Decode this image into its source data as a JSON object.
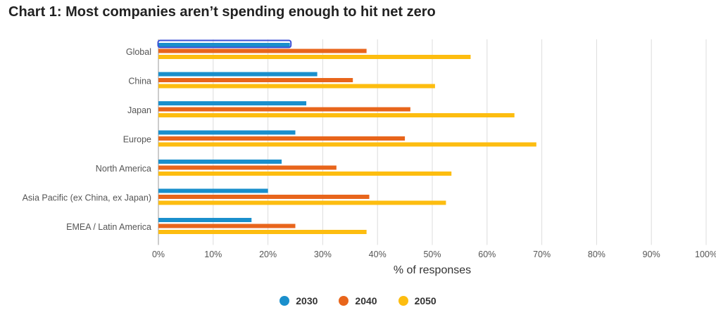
{
  "title": "Chart 1: Most companies aren’t spending enough to hit net zero",
  "chart_data": {
    "type": "bar",
    "orientation": "horizontal",
    "categories": [
      "Global",
      "China",
      "Japan",
      "Europe",
      "North America",
      "Asia Pacific (ex China, ex Japan)",
      "EMEA / Latin America"
    ],
    "series": [
      {
        "name": "2030",
        "color": "#1a8fcc",
        "values": [
          24,
          29,
          27,
          25,
          22.5,
          20,
          17
        ]
      },
      {
        "name": "2040",
        "color": "#e8651b",
        "values": [
          38,
          35.5,
          46,
          45,
          32.5,
          38.5,
          25
        ]
      },
      {
        "name": "2050",
        "color": "#fdbd10",
        "values": [
          57,
          50.5,
          65,
          69,
          53.5,
          52.5,
          38
        ]
      }
    ],
    "xlabel": "% of responses",
    "xlim": [
      0,
      100
    ],
    "xticks": [
      "0%",
      "10%",
      "20%",
      "30%",
      "40%",
      "50%",
      "60%",
      "70%",
      "80%",
      "90%",
      "100%"
    ],
    "grid": true,
    "legend_position": "bottom",
    "highlight": {
      "category": "Global",
      "series": "2030",
      "color": "#3a4fd6"
    }
  }
}
